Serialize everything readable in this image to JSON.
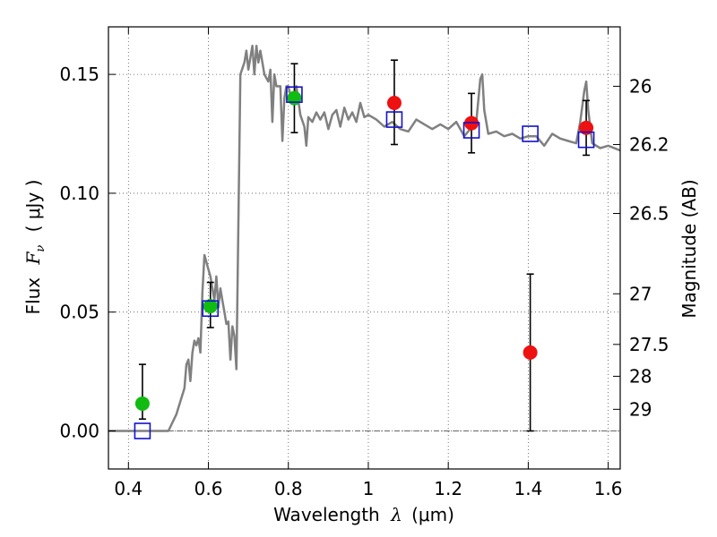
{
  "chart_data": {
    "type": "scatter",
    "xlabel": "Wavelength",
    "xlabel_symbol": "λ",
    "xlabel_unit": "(μm)",
    "ylabel": "Flux",
    "ylabel_symbol": "F",
    "ylabel_subscript": "ν",
    "ylabel_unit": "( μJy )",
    "y2label": "Magnitude (AB)",
    "xlim": [
      0.35,
      1.63
    ],
    "ylim": [
      -0.016,
      0.17
    ],
    "grid": true,
    "x_ticks": [
      {
        "value": 0.4,
        "label": "0.4"
      },
      {
        "value": 0.6,
        "label": "0.6"
      },
      {
        "value": 0.8,
        "label": "0.8"
      },
      {
        "value": 1.0,
        "label": "1"
      },
      {
        "value": 1.2,
        "label": "1.2"
      },
      {
        "value": 1.4,
        "label": "1.4"
      },
      {
        "value": 1.6,
        "label": "1.6"
      }
    ],
    "y_ticks": [
      {
        "value": 0.0,
        "label": "0.00"
      },
      {
        "value": 0.05,
        "label": "0.05"
      },
      {
        "value": 0.1,
        "label": "0.10"
      },
      {
        "value": 0.15,
        "label": "0.15"
      }
    ],
    "y2_ticks": [
      {
        "flux": 0.145,
        "label": "26"
      },
      {
        "flux": 0.1205,
        "label": "26.2"
      },
      {
        "flux": 0.0915,
        "label": "26.5"
      },
      {
        "flux": 0.0577,
        "label": "27"
      },
      {
        "flux": 0.0364,
        "label": "27.5"
      },
      {
        "flux": 0.023,
        "label": "28"
      },
      {
        "flux": 0.0091,
        "label": "29"
      }
    ],
    "colors": {
      "model": "#808080",
      "green": "#11bb11",
      "red": "#ee1111",
      "box": "#1111cc",
      "error": "#000000"
    },
    "model_spectrum": {
      "x": [
        0.35,
        0.48,
        0.5,
        0.52,
        0.54,
        0.545,
        0.55,
        0.555,
        0.56,
        0.565,
        0.57,
        0.575,
        0.58,
        0.585,
        0.59,
        0.6,
        0.605,
        0.61,
        0.615,
        0.62,
        0.625,
        0.63,
        0.635,
        0.64,
        0.645,
        0.65,
        0.655,
        0.66,
        0.665,
        0.67,
        0.68,
        0.69,
        0.695,
        0.7,
        0.71,
        0.715,
        0.72,
        0.725,
        0.73,
        0.74,
        0.75,
        0.755,
        0.76,
        0.765,
        0.77,
        0.78,
        0.785,
        0.79,
        0.795,
        0.8,
        0.81,
        0.82,
        0.83,
        0.84,
        0.845,
        0.85,
        0.86,
        0.87,
        0.88,
        0.89,
        0.9,
        0.91,
        0.92,
        0.93,
        0.94,
        0.95,
        0.96,
        0.97,
        0.98,
        0.99,
        1.0,
        1.02,
        1.04,
        1.06,
        1.08,
        1.1,
        1.12,
        1.14,
        1.16,
        1.18,
        1.2,
        1.22,
        1.24,
        1.26,
        1.27,
        1.28,
        1.285,
        1.29,
        1.3,
        1.32,
        1.34,
        1.36,
        1.38,
        1.4,
        1.42,
        1.44,
        1.46,
        1.48,
        1.5,
        1.52,
        1.53,
        1.54,
        1.545,
        1.55,
        1.56,
        1.58,
        1.6,
        1.63
      ],
      "y": [
        0.0,
        0.0,
        0.0,
        0.007,
        0.018,
        0.028,
        0.03,
        0.021,
        0.033,
        0.038,
        0.036,
        0.039,
        0.033,
        0.058,
        0.074,
        0.068,
        0.065,
        0.06,
        0.055,
        0.065,
        0.052,
        0.06,
        0.055,
        0.05,
        0.045,
        0.046,
        0.03,
        0.044,
        0.04,
        0.026,
        0.15,
        0.155,
        0.16,
        0.152,
        0.162,
        0.15,
        0.162,
        0.155,
        0.16,
        0.15,
        0.147,
        0.152,
        0.13,
        0.15,
        0.145,
        0.145,
        0.122,
        0.14,
        0.145,
        0.145,
        0.138,
        0.145,
        0.133,
        0.128,
        0.12,
        0.132,
        0.13,
        0.134,
        0.131,
        0.134,
        0.127,
        0.133,
        0.135,
        0.128,
        0.136,
        0.131,
        0.134,
        0.13,
        0.138,
        0.132,
        0.133,
        0.131,
        0.128,
        0.13,
        0.127,
        0.126,
        0.131,
        0.129,
        0.127,
        0.129,
        0.127,
        0.13,
        0.124,
        0.128,
        0.13,
        0.148,
        0.15,
        0.135,
        0.125,
        0.126,
        0.124,
        0.125,
        0.123,
        0.124,
        0.124,
        0.12,
        0.125,
        0.123,
        0.122,
        0.121,
        0.13,
        0.143,
        0.147,
        0.135,
        0.121,
        0.119,
        0.12,
        0.118
      ]
    },
    "series": [
      {
        "marker": "circle",
        "color": "green",
        "points": [
          {
            "x": 0.435,
            "y": 0.0115,
            "err_low": 0.005,
            "err_high": 0.028
          },
          {
            "x": 0.605,
            "y": 0.0525,
            "err_low": 0.0435,
            "err_high": 0.0625
          },
          {
            "x": 0.815,
            "y": 0.14,
            "err_low": 0.1255,
            "err_high": 0.1545
          }
        ]
      },
      {
        "marker": "circle",
        "color": "red",
        "points": [
          {
            "x": 1.065,
            "y": 0.138,
            "err_low": 0.1205,
            "err_high": 0.156
          },
          {
            "x": 1.258,
            "y": 0.1295,
            "err_low": 0.117,
            "err_high": 0.142
          },
          {
            "x": 1.405,
            "y": 0.033,
            "err_low": 0.0,
            "err_high": 0.066
          },
          {
            "x": 1.545,
            "y": 0.1275,
            "err_low": 0.116,
            "err_high": 0.139
          }
        ]
      },
      {
        "marker": "square",
        "color": "box",
        "points": [
          {
            "x": 0.435,
            "y": 0.0
          },
          {
            "x": 0.605,
            "y": 0.0515
          },
          {
            "x": 0.815,
            "y": 0.1415
          },
          {
            "x": 1.065,
            "y": 0.131
          },
          {
            "x": 1.258,
            "y": 0.1265
          },
          {
            "x": 1.405,
            "y": 0.125
          },
          {
            "x": 1.545,
            "y": 0.1225
          }
        ]
      }
    ]
  }
}
